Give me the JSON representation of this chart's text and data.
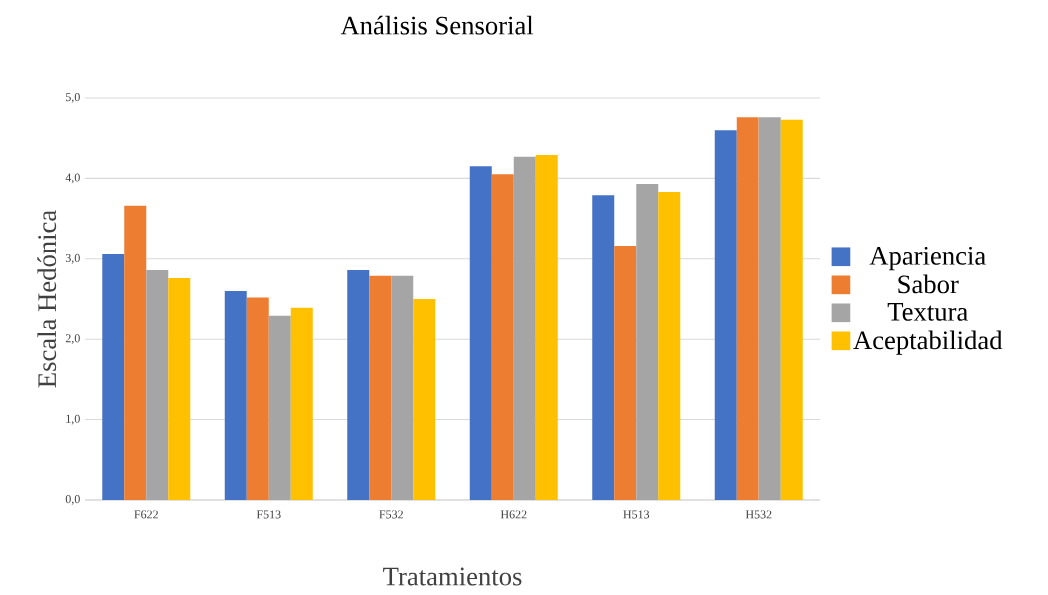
{
  "chart_data": {
    "type": "bar",
    "title": "Análisis Sensorial",
    "xlabel": "Tratamientos",
    "ylabel": "Escala Hedónica",
    "categories": [
      "F622",
      "F513",
      "F532",
      "H622",
      "H513",
      "H532"
    ],
    "series": [
      {
        "name": "Apariencia",
        "color": "#4472c4",
        "values": [
          3.06,
          2.6,
          2.86,
          4.15,
          3.79,
          4.6
        ]
      },
      {
        "name": "Sabor",
        "color": "#ed7d31",
        "values": [
          3.66,
          2.52,
          2.79,
          4.05,
          3.16,
          4.76
        ]
      },
      {
        "name": "Textura",
        "color": "#a5a5a5",
        "values": [
          2.86,
          2.29,
          2.79,
          4.27,
          3.93,
          4.76
        ]
      },
      {
        "name": "Aceptabilidad",
        "color": "#ffc000",
        "values": [
          2.76,
          2.39,
          2.5,
          4.29,
          3.83,
          4.73
        ]
      }
    ],
    "ylim": [
      0,
      5
    ],
    "yticks": [
      {
        "value": 0,
        "label": "0,0"
      },
      {
        "value": 1,
        "label": "1,0"
      },
      {
        "value": 2,
        "label": "2,0"
      },
      {
        "value": 3,
        "label": "3,0"
      },
      {
        "value": 4,
        "label": "4,0"
      },
      {
        "value": 5,
        "label": "5,0"
      }
    ],
    "grid": "y",
    "legend": "right"
  }
}
